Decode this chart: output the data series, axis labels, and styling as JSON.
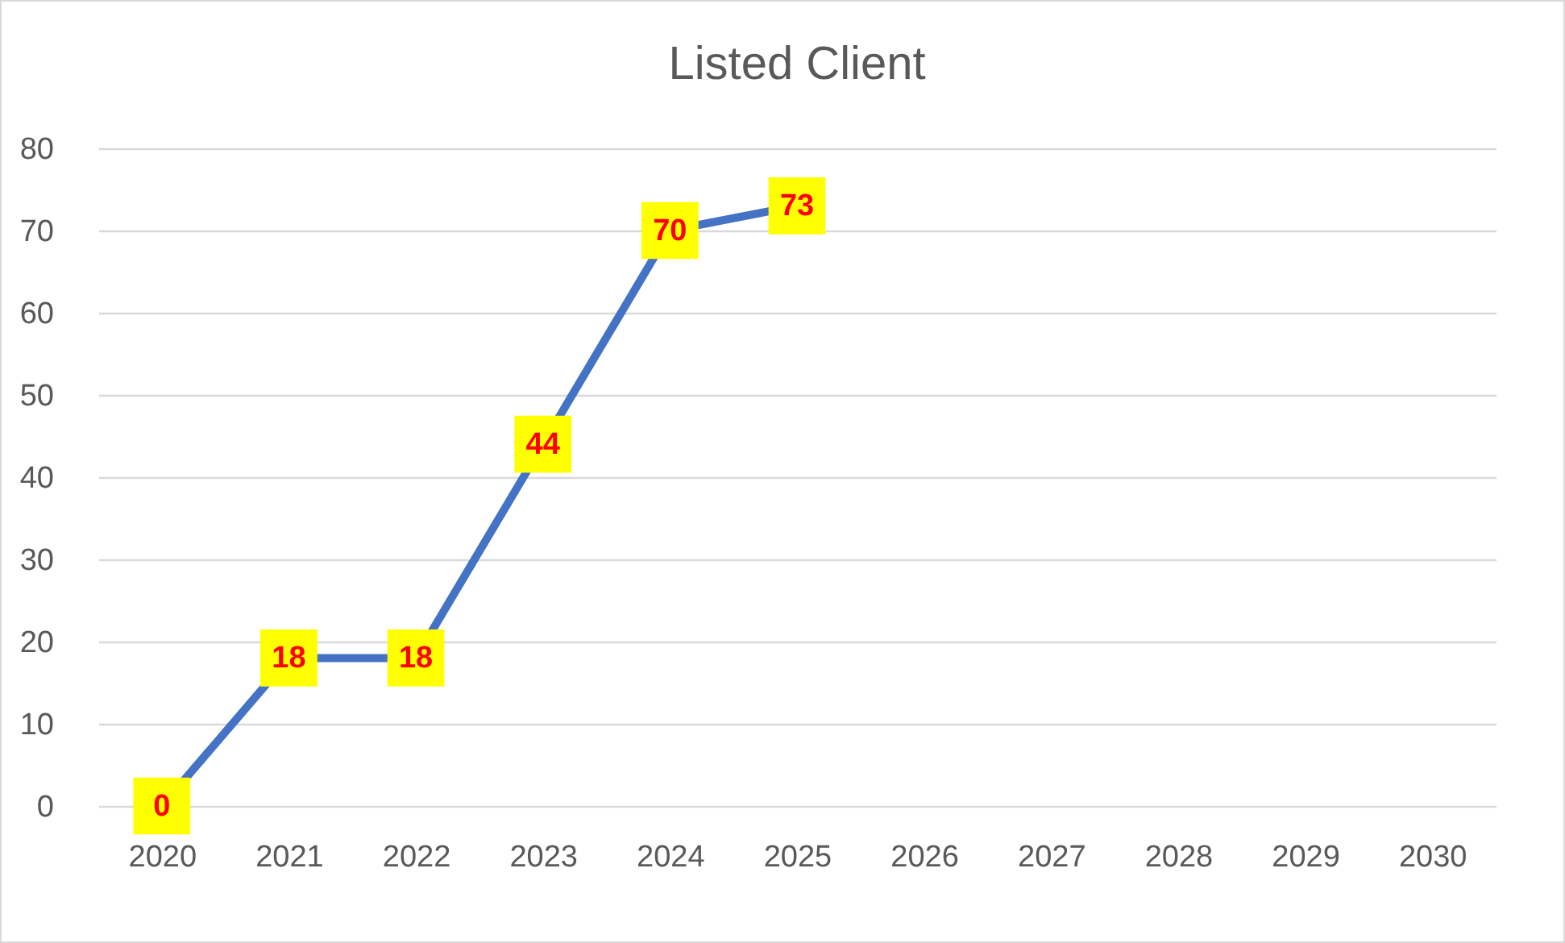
{
  "chart_data": {
    "type": "line",
    "title": "Listed Client",
    "categories": [
      "2020",
      "2021",
      "2022",
      "2023",
      "2024",
      "2025",
      "2026",
      "2027",
      "2028",
      "2029",
      "2030"
    ],
    "series": [
      {
        "color": "#4472c4",
        "values": [
          0,
          18,
          18,
          44,
          70,
          73,
          null,
          null,
          null,
          null,
          null
        ]
      }
    ],
    "ylim": [
      0,
      80
    ],
    "yticks": [
      0,
      10,
      20,
      30,
      40,
      50,
      60,
      70,
      80
    ],
    "grid": "y",
    "legend": false,
    "marker": "square",
    "line_style": "solid",
    "data_labels": true
  }
}
